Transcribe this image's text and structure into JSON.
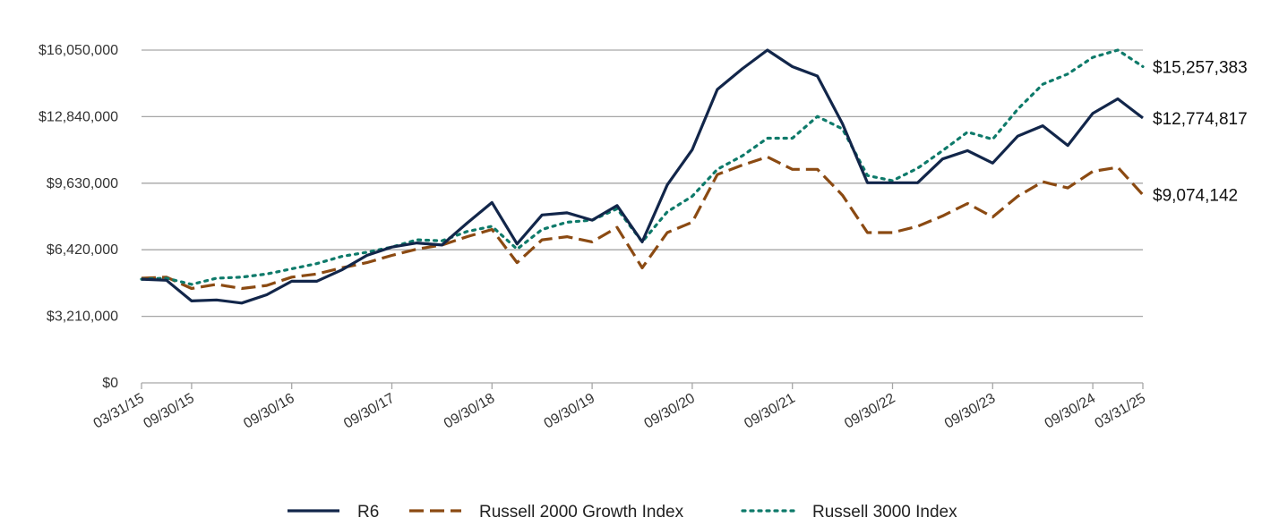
{
  "chart_data": {
    "type": "line",
    "title": "",
    "xlabel": "",
    "ylabel": "",
    "ylim": [
      0,
      16050000
    ],
    "y_ticks": [
      0,
      3210000,
      6420000,
      9630000,
      12840000,
      16050000
    ],
    "y_tick_labels": [
      "$0",
      "$3,210,000",
      "$6,420,000",
      "$9,630,000",
      "$12,840,000",
      "$16,050,000"
    ],
    "x_tick_labels": [
      "03/31/15",
      "09/30/15",
      "09/30/16",
      "09/30/17",
      "09/30/18",
      "09/30/19",
      "09/30/20",
      "09/30/21",
      "09/30/22",
      "09/30/23",
      "09/30/24",
      "03/31/25"
    ],
    "x_tick_index": [
      0,
      2,
      6,
      10,
      14,
      18,
      22,
      26,
      30,
      34,
      38,
      40
    ],
    "grid": true,
    "legend_position": "bottom",
    "series": [
      {
        "name": "R6",
        "color": "#12264a",
        "dash": "solid",
        "end_label": "$12,774,817",
        "values": [
          5000000,
          4950000,
          3950000,
          4000000,
          3850000,
          4250000,
          4900000,
          4900000,
          5450000,
          6150000,
          6550000,
          6750000,
          6650000,
          7700000,
          8700000,
          6700000,
          8100000,
          8200000,
          7850000,
          8550000,
          6800000,
          9550000,
          11250000,
          14150000,
          15150000,
          16050000,
          15250000,
          14800000,
          12500000,
          9650000,
          9650000,
          9650000,
          10800000,
          11200000,
          10600000,
          11900000,
          12400000,
          11450000,
          13000000,
          13700000,
          12774817
        ]
      },
      {
        "name": "Russell 2000 Growth Index",
        "color": "#8b4a12",
        "dash": "dashed",
        "end_label": "$9,074,142",
        "values": [
          5050000,
          5100000,
          4550000,
          4750000,
          4550000,
          4700000,
          5100000,
          5250000,
          5550000,
          5800000,
          6150000,
          6450000,
          6650000,
          7050000,
          7400000,
          5800000,
          6900000,
          7050000,
          6800000,
          7500000,
          5550000,
          7250000,
          7750000,
          10050000,
          10500000,
          10900000,
          10300000,
          10300000,
          9050000,
          7250000,
          7250000,
          7550000,
          8050000,
          8650000,
          8000000,
          9000000,
          9700000,
          9400000,
          10200000,
          10400000,
          9074142
        ]
      },
      {
        "name": "Russell 3000 Index",
        "color": "#0e7a6a",
        "dash": "dotted",
        "end_label": "$15,257,383",
        "values": [
          5000000,
          5050000,
          4750000,
          5050000,
          5100000,
          5250000,
          5500000,
          5750000,
          6100000,
          6300000,
          6550000,
          6900000,
          6850000,
          7300000,
          7550000,
          6450000,
          7400000,
          7750000,
          7850000,
          8400000,
          6800000,
          8250000,
          9000000,
          10300000,
          10950000,
          11800000,
          11800000,
          12850000,
          12250000,
          10000000,
          9750000,
          10350000,
          11200000,
          12100000,
          11750000,
          13200000,
          14400000,
          14900000,
          15700000,
          16050000,
          15257383
        ]
      }
    ]
  }
}
